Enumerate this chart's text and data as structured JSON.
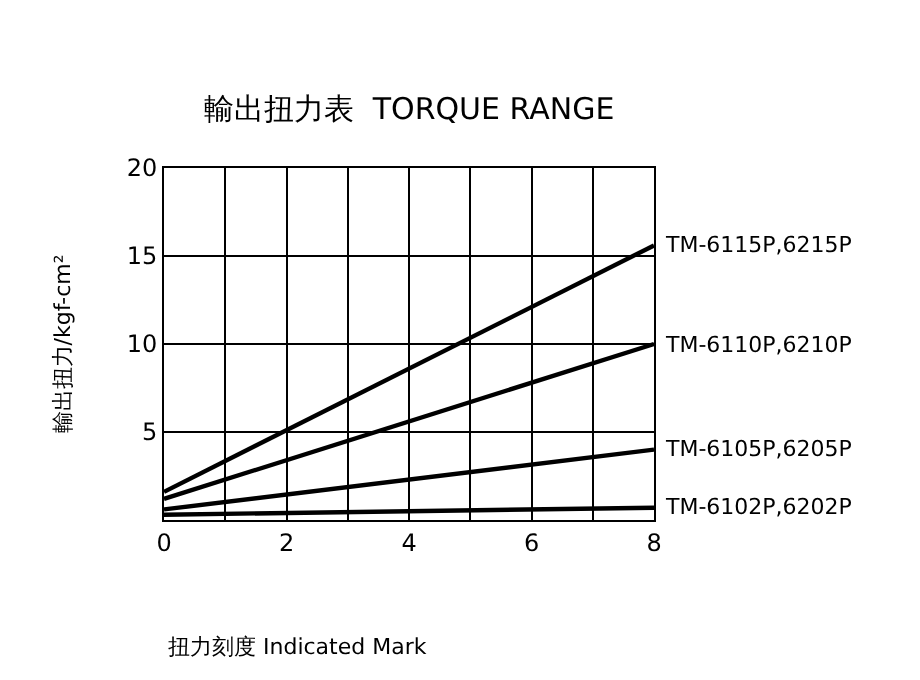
{
  "chart_data": {
    "type": "line",
    "title": "輸出扭力表  TORQUE RANGE",
    "xlabel": "扭力刻度 Indicated Mark",
    "ylabel": "輸出扭力/kgf-cm²",
    "x": [
      0,
      8
    ],
    "series": [
      {
        "name": "TM-6115P,6215P",
        "color": "#000000",
        "values": [
          1.6,
          15.6
        ]
      },
      {
        "name": "TM-6110P,6210P",
        "color": "#000000",
        "values": [
          1.2,
          10
        ]
      },
      {
        "name": "TM-6105P,6205P",
        "color": "#000000",
        "values": [
          0.6,
          4
        ]
      },
      {
        "name": "TM-6102P,6202P",
        "color": "#000000",
        "values": [
          0.3,
          0.7
        ]
      }
    ],
    "xlim": [
      0,
      8
    ],
    "xticks": [
      0,
      {
        "value": 1,
        "label": null
      },
      2,
      {
        "value": 3,
        "label": null
      },
      4,
      {
        "value": 5,
        "label": null
      },
      6,
      {
        "value": 7,
        "label": null
      },
      8
    ],
    "ylim": [
      0,
      20
    ],
    "yticks": [
      {
        "value": 0,
        "label": null
      },
      5,
      10,
      15,
      20
    ],
    "grid": true,
    "legend": false,
    "marker": "none",
    "line_style": "solid"
  }
}
